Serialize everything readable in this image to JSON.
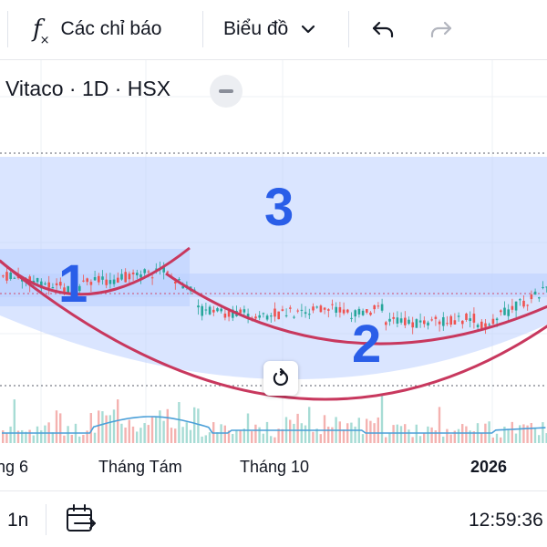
{
  "toolbar": {
    "indicators_label": "Các chỉ báo",
    "chart_type_label": "Biểu đồ"
  },
  "chart": {
    "symbol": "Vitaco · 1D · HSX",
    "zones": {
      "one": "1",
      "two": "2",
      "three": "3"
    },
    "colors": {
      "zone_fill": "#bcd0ff",
      "arc_color": "#c8385e",
      "candle_up": "#26a69a",
      "candle_down": "#ef5350",
      "volume_ma": "#4a9fd8"
    }
  },
  "time_axis": {
    "labels": [
      "ng 6",
      "Tháng Tám",
      "Tháng 10",
      "2026"
    ]
  },
  "bottom_bar": {
    "interval": "1n",
    "clock": "12:59:36"
  }
}
